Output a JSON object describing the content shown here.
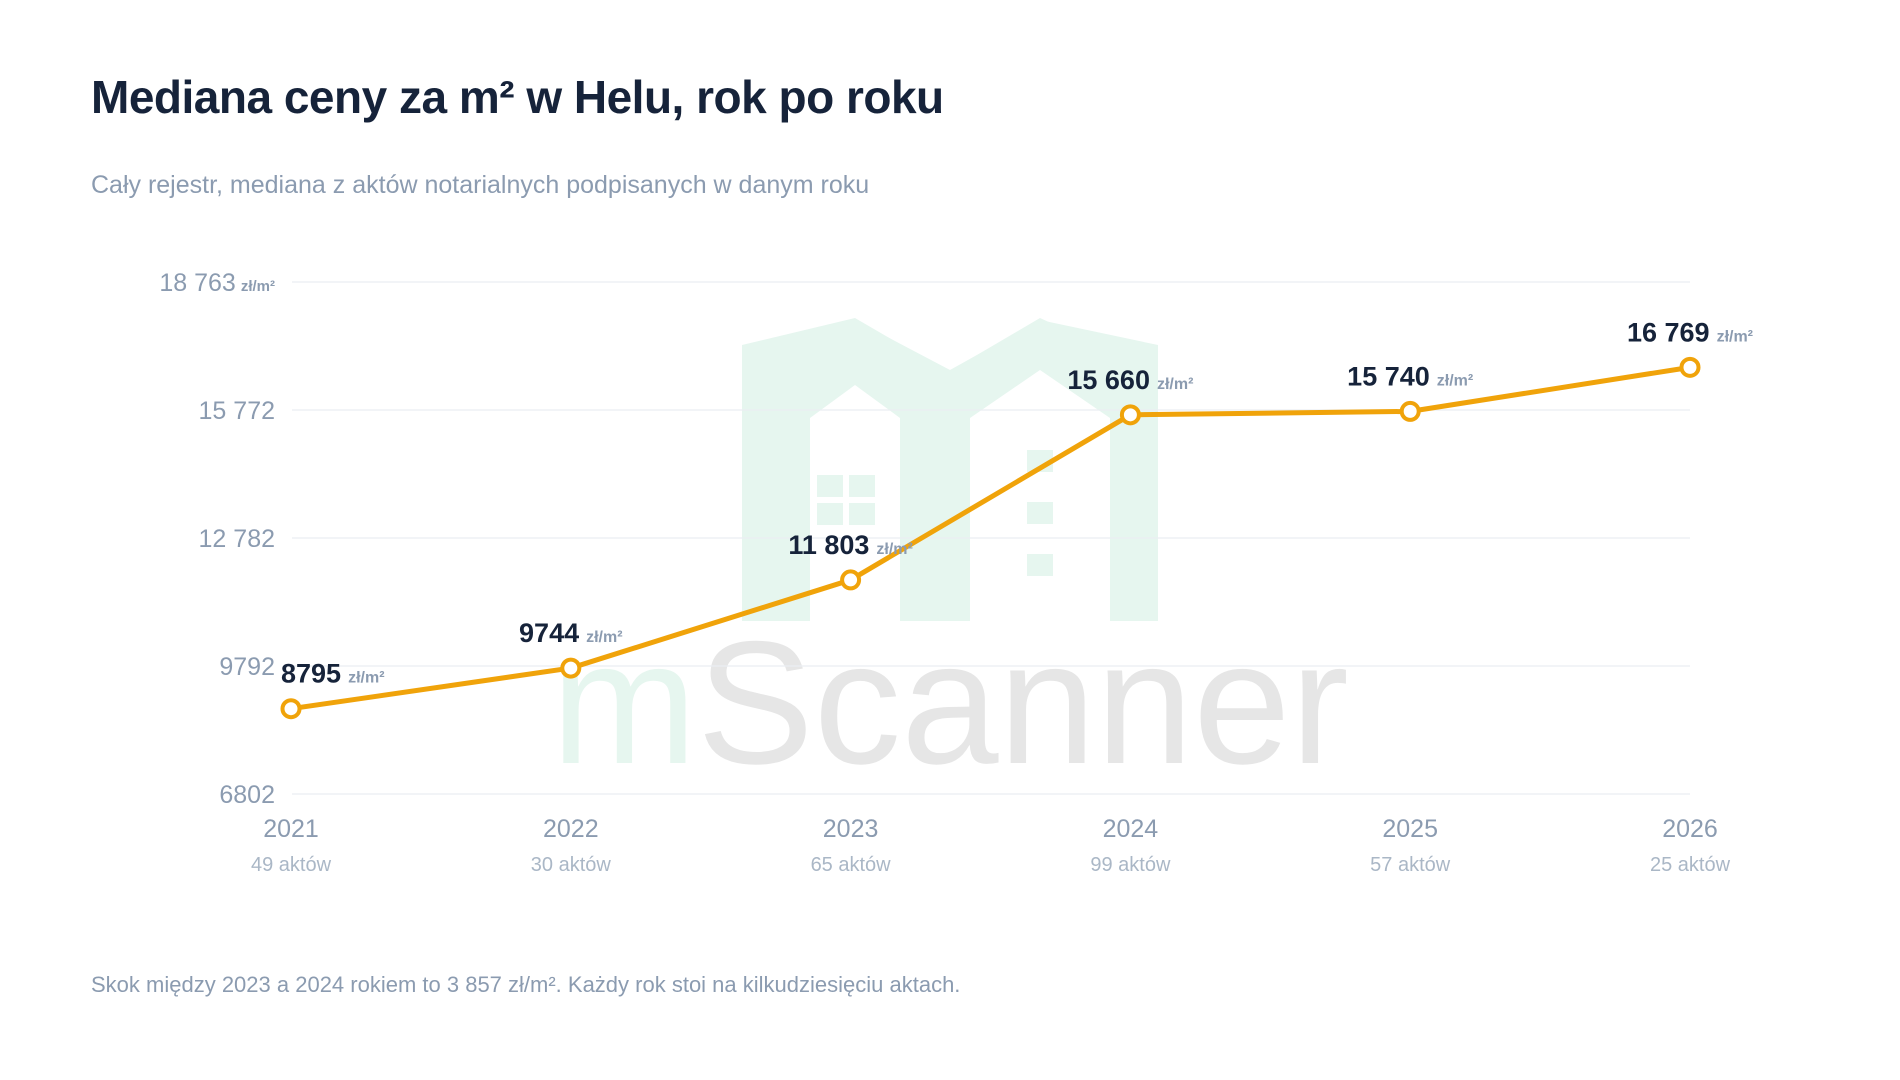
{
  "title": "Mediana ceny za m² w Helu, rok po roku",
  "subtitle": "Cały rejestr, mediana z aktów notarialnych podpisanych w danym roku",
  "footer": "Skok między 2023 a 2024 rokiem to 3 857 zł/m². Każdy rok stoi na kilkudziesięciu aktach.",
  "watermark": {
    "text": "mScanner",
    "brand_color": "#e6f6ef",
    "text_color": "#e6e6e6"
  },
  "colors": {
    "line": "#f0a30a",
    "grid": "#ebeef2",
    "value_text": "#16233a",
    "muted_text": "#8b9bb0"
  },
  "chart_data": {
    "type": "line",
    "title": "Mediana ceny za m² w Helu, rok po roku",
    "x": [
      "2021",
      "2022",
      "2023",
      "2024",
      "2025",
      "2026"
    ],
    "x_sublabels": [
      "49 aktów",
      "30 aktów",
      "65 aktów",
      "99 aktów",
      "57 aktów",
      "25 aktów"
    ],
    "values": [
      8795,
      9744,
      11803,
      15660,
      15740,
      16769
    ],
    "value_labels": [
      "8795",
      "9744",
      "11 803",
      "15 660",
      "15 740",
      "16 769"
    ],
    "value_unit": "zł/m²",
    "ylim": [
      6802,
      18763
    ],
    "y_ticks": [
      6802,
      9792,
      12782,
      15772,
      18763
    ],
    "y_tick_labels": [
      "6802",
      "9792",
      "12 782",
      "15 772",
      "18 763"
    ],
    "y_top_unit": "zł/m²",
    "grid": true,
    "legend": "none"
  }
}
